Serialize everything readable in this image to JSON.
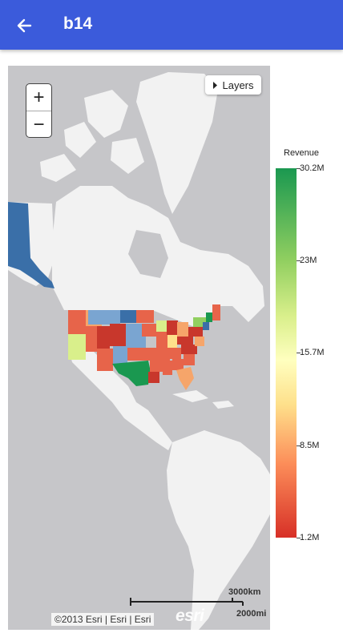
{
  "app": {
    "title": "b14",
    "back_icon": "arrow-left-icon",
    "bar_color": "#3b5bdb"
  },
  "map": {
    "zoom_in_label": "+",
    "zoom_out_label": "−",
    "layers_label": "Layers",
    "layers_icon": "caret-right-icon",
    "scale_km": "3000km",
    "scale_mi": "2000mi",
    "attribution": "©2013 Esri | Esri | Esri",
    "logo_text": "esri"
  },
  "legend": {
    "title": "Revenue",
    "max_label": "30.2M",
    "t2_label": "23M",
    "t3_label": "15.7M",
    "t4_label": "8.5M",
    "min_label": "1.2M",
    "colors": [
      "#1a9850",
      "#91cf60",
      "#d9ef8b",
      "#ffffbf",
      "#fee08b",
      "#fc8d59",
      "#d73027"
    ]
  }
}
